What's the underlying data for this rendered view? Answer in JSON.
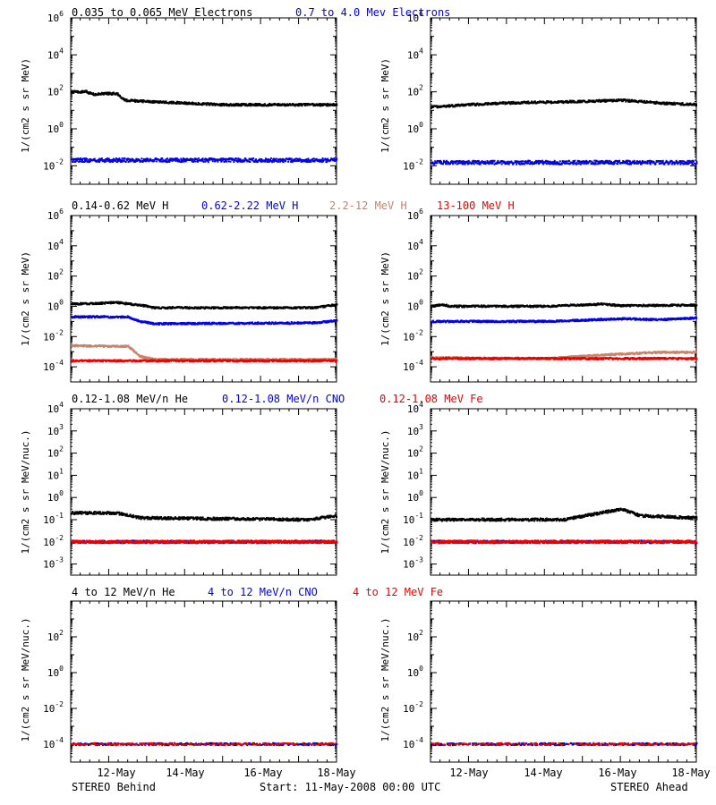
{
  "colors": {
    "black": "#000000",
    "blue": "#0000ee",
    "brown": "#c8846a",
    "red": "#ee0000",
    "axis": "#000000"
  },
  "header_labels": [
    [
      {
        "text": "0.035 to 0.065 MeV Electrons",
        "color": "#000000"
      },
      {
        "text": "0.7 to 4.0 Mev Electrons",
        "color": "#0000ee"
      }
    ],
    [
      {
        "text": "0.14-0.62 MeV H",
        "color": "#000000"
      },
      {
        "text": "0.62-2.22 MeV H",
        "color": "#0000ee"
      },
      {
        "text": "2.2-12 MeV H",
        "color": "#c8846a"
      },
      {
        "text": "13-100 MeV H",
        "color": "#ee0000"
      }
    ],
    [
      {
        "text": "0.12-1.08 MeV/n He",
        "color": "#000000"
      },
      {
        "text": "0.12-1.08 MeV/n CNO",
        "color": "#0000ee"
      },
      {
        "text": "0.12-1.08 MeV Fe",
        "color": "#ee0000"
      }
    ],
    [
      {
        "text": "4 to 12 MeV/n He",
        "color": "#000000"
      },
      {
        "text": "4 to 12 MeV/n CNO",
        "color": "#0000ee"
      },
      {
        "text": "4 to 12 MeV Fe",
        "color": "#ee0000"
      }
    ]
  ],
  "ylabels": [
    "1/(cm2 s sr MeV)",
    "1/(cm2 s sr MeV)",
    "1/(cm2 s sr MeV/nuc.)",
    "1/(cm2 s sr MeV/nuc.)"
  ],
  "x_tick_labels": [
    "12-May",
    "14-May",
    "16-May",
    "18-May"
  ],
  "footer": {
    "left": "STEREO Behind",
    "center": "Start: 11-May-2008 00:00 UTC",
    "right": "STEREO Ahead"
  },
  "chart_data": [
    {
      "type": "scatter",
      "panel": "electrons",
      "spacecraft": "STEREO Behind",
      "y_scale": "log",
      "ylim_exp": [
        -3,
        6
      ],
      "y_tick_exps": [
        -2,
        0,
        2,
        4,
        6
      ],
      "x_range_days": [
        0,
        7
      ],
      "series": [
        {
          "name": "0.035 to 0.065 MeV Electrons",
          "color": "#000000",
          "points": [
            [
              0,
              100
            ],
            [
              0.4,
              100
            ],
            [
              0.6,
              70
            ],
            [
              0.8,
              80
            ],
            [
              1.2,
              80
            ],
            [
              1.4,
              35
            ],
            [
              2,
              30
            ],
            [
              4,
              20
            ],
            [
              6,
              20
            ],
            [
              7,
              20
            ]
          ]
        },
        {
          "name": "0.7 to 4.0 Mev Electrons",
          "color": "#0000ee",
          "points": [
            [
              0,
              0.02
            ],
            [
              3.5,
              0.02
            ],
            [
              7,
              0.02
            ]
          ]
        }
      ]
    },
    {
      "type": "scatter",
      "panel": "electrons",
      "spacecraft": "STEREO Ahead",
      "y_scale": "log",
      "ylim_exp": [
        -3,
        6
      ],
      "y_tick_exps": [
        -2,
        0,
        2,
        4,
        6
      ],
      "x_range_days": [
        0,
        7
      ],
      "series": [
        {
          "color": "#000000",
          "points": [
            [
              0,
              15
            ],
            [
              1,
              20
            ],
            [
              2,
              25
            ],
            [
              4,
              30
            ],
            [
              5,
              35
            ],
            [
              6,
              25
            ],
            [
              7,
              20
            ]
          ]
        },
        {
          "color": "#0000ee",
          "points": [
            [
              0,
              0.015
            ],
            [
              3.5,
              0.015
            ],
            [
              7,
              0.015
            ]
          ]
        }
      ]
    },
    {
      "type": "scatter",
      "panel": "protons",
      "spacecraft": "STEREO Behind",
      "y_scale": "log",
      "ylim_exp": [
        -5,
        6
      ],
      "y_tick_exps": [
        -4,
        -2,
        0,
        2,
        4,
        6
      ],
      "x_range_days": [
        0,
        7
      ],
      "series": [
        {
          "name": "0.14-0.62 MeV H",
          "color": "#000000",
          "points": [
            [
              0,
              1.4
            ],
            [
              0.8,
              1.6
            ],
            [
              1.2,
              1.8
            ],
            [
              1.8,
              1.2
            ],
            [
              2.2,
              0.8
            ],
            [
              6.4,
              0.8
            ],
            [
              7,
              1.3
            ]
          ]
        },
        {
          "name": "0.62-2.22 MeV H",
          "color": "#0000ee",
          "points": [
            [
              0,
              0.2
            ],
            [
              1.5,
              0.2
            ],
            [
              1.8,
              0.1
            ],
            [
              2.2,
              0.07
            ],
            [
              6.4,
              0.08
            ],
            [
              7,
              0.11
            ]
          ]
        },
        {
          "name": "2.2-12 MeV H",
          "color": "#c8846a",
          "points": [
            [
              0,
              0.0025
            ],
            [
              1.5,
              0.0022
            ],
            [
              1.8,
              0.0005
            ],
            [
              2.2,
              0.0003
            ],
            [
              7,
              0.0003
            ]
          ]
        },
        {
          "name": "13-100 MeV H",
          "color": "#ee0000",
          "points": [
            [
              0,
              0.00025
            ],
            [
              3.5,
              0.00025
            ],
            [
              7,
              0.00025
            ]
          ]
        }
      ]
    },
    {
      "type": "scatter",
      "panel": "protons",
      "spacecraft": "STEREO Ahead",
      "y_scale": "log",
      "ylim_exp": [
        -5,
        6
      ],
      "y_tick_exps": [
        -4,
        -2,
        0,
        2,
        4,
        6
      ],
      "x_range_days": [
        0,
        7
      ],
      "series": [
        {
          "color": "#000000",
          "points": [
            [
              0,
              1.0
            ],
            [
              0.3,
              1.3
            ],
            [
              0.5,
              1.0
            ],
            [
              3,
              1.0
            ],
            [
              4.5,
              1.4
            ],
            [
              5,
              1.1
            ],
            [
              7,
              1.2
            ]
          ]
        },
        {
          "color": "#0000ee",
          "points": [
            [
              0,
              0.1
            ],
            [
              3,
              0.1
            ],
            [
              4,
              0.12
            ],
            [
              5,
              0.15
            ],
            [
              6,
              0.13
            ],
            [
              7,
              0.17
            ]
          ]
        },
        {
          "color": "#c8846a",
          "points": [
            [
              0,
              0.0004
            ],
            [
              3,
              0.00035
            ],
            [
              4.5,
              0.0006
            ],
            [
              6,
              0.0009
            ],
            [
              7,
              0.0009
            ]
          ]
        },
        {
          "color": "#ee0000",
          "points": [
            [
              0,
              0.00035
            ],
            [
              3.5,
              0.00035
            ],
            [
              7,
              0.00035
            ]
          ]
        }
      ]
    },
    {
      "type": "scatter",
      "panel": "heavy-ions-low",
      "spacecraft": "STEREO Behind",
      "y_scale": "log",
      "ylim_exp": [
        -3.5,
        4
      ],
      "y_tick_exps": [
        -3,
        -2,
        -1,
        0,
        1,
        2,
        3,
        4
      ],
      "x_range_days": [
        0,
        7
      ],
      "series": [
        {
          "name": "0.12-1.08 MeV/n He",
          "color": "#000000",
          "points": [
            [
              0,
              0.2
            ],
            [
              1.2,
              0.2
            ],
            [
              1.8,
              0.12
            ],
            [
              6.2,
              0.1
            ],
            [
              7,
              0.15
            ]
          ]
        },
        {
          "name": "0.12-1.08 MeV/n CNO",
          "color": "#0000ee",
          "points": [
            [
              0,
              0.01
            ],
            [
              7,
              0.01
            ]
          ]
        },
        {
          "name": "0.12-1.08 MeV Fe",
          "color": "#ee0000",
          "points": [
            [
              0,
              0.01
            ],
            [
              7,
              0.01
            ]
          ]
        }
      ]
    },
    {
      "type": "scatter",
      "panel": "heavy-ions-low",
      "spacecraft": "STEREO Ahead",
      "y_scale": "log",
      "ylim_exp": [
        -3.5,
        4
      ],
      "y_tick_exps": [
        -3,
        -2,
        -1,
        0,
        1,
        2,
        3,
        4
      ],
      "x_range_days": [
        0,
        7
      ],
      "series": [
        {
          "color": "#000000",
          "points": [
            [
              0,
              0.1
            ],
            [
              3.5,
              0.1
            ],
            [
              5,
              0.3
            ],
            [
              5.5,
              0.15
            ],
            [
              7,
              0.12
            ]
          ]
        },
        {
          "color": "#0000ee",
          "points": [
            [
              0,
              0.01
            ],
            [
              7,
              0.01
            ]
          ]
        },
        {
          "color": "#ee0000",
          "points": [
            [
              0,
              0.01
            ],
            [
              7,
              0.01
            ]
          ]
        }
      ]
    },
    {
      "type": "scatter",
      "panel": "heavy-ions-high",
      "spacecraft": "STEREO Behind",
      "y_scale": "log",
      "ylim_exp": [
        -5,
        4
      ],
      "y_tick_exps": [
        -4,
        -2,
        0,
        2
      ],
      "x_range_days": [
        0,
        7
      ],
      "series": [
        {
          "name": "4 to 12 MeV/n He",
          "color": "#000000",
          "points": [
            [
              0,
              0.0001
            ],
            [
              7,
              0.0001
            ]
          ]
        },
        {
          "name": "4 to 12 MeV/n CNO",
          "color": "#0000ee",
          "points": [
            [
              0,
              0.0001
            ],
            [
              7,
              0.0001
            ]
          ]
        },
        {
          "name": "4 to 12 MeV Fe",
          "color": "#ee0000",
          "points": [
            [
              0,
              0.0001
            ],
            [
              7,
              0.0001
            ]
          ]
        }
      ]
    },
    {
      "type": "scatter",
      "panel": "heavy-ions-high",
      "spacecraft": "STEREO Ahead",
      "y_scale": "log",
      "ylim_exp": [
        -5,
        4
      ],
      "y_tick_exps": [
        -4,
        -2,
        0,
        2
      ],
      "x_range_days": [
        0,
        7
      ],
      "series": [
        {
          "color": "#000000",
          "points": [
            [
              0,
              0.0001
            ],
            [
              7,
              0.0001
            ]
          ]
        },
        {
          "color": "#0000ee",
          "points": [
            [
              0,
              0.0001
            ],
            [
              7,
              0.0001
            ]
          ]
        },
        {
          "color": "#ee0000",
          "points": [
            [
              0,
              0.0001
            ],
            [
              7,
              0.0001
            ]
          ]
        }
      ]
    }
  ]
}
